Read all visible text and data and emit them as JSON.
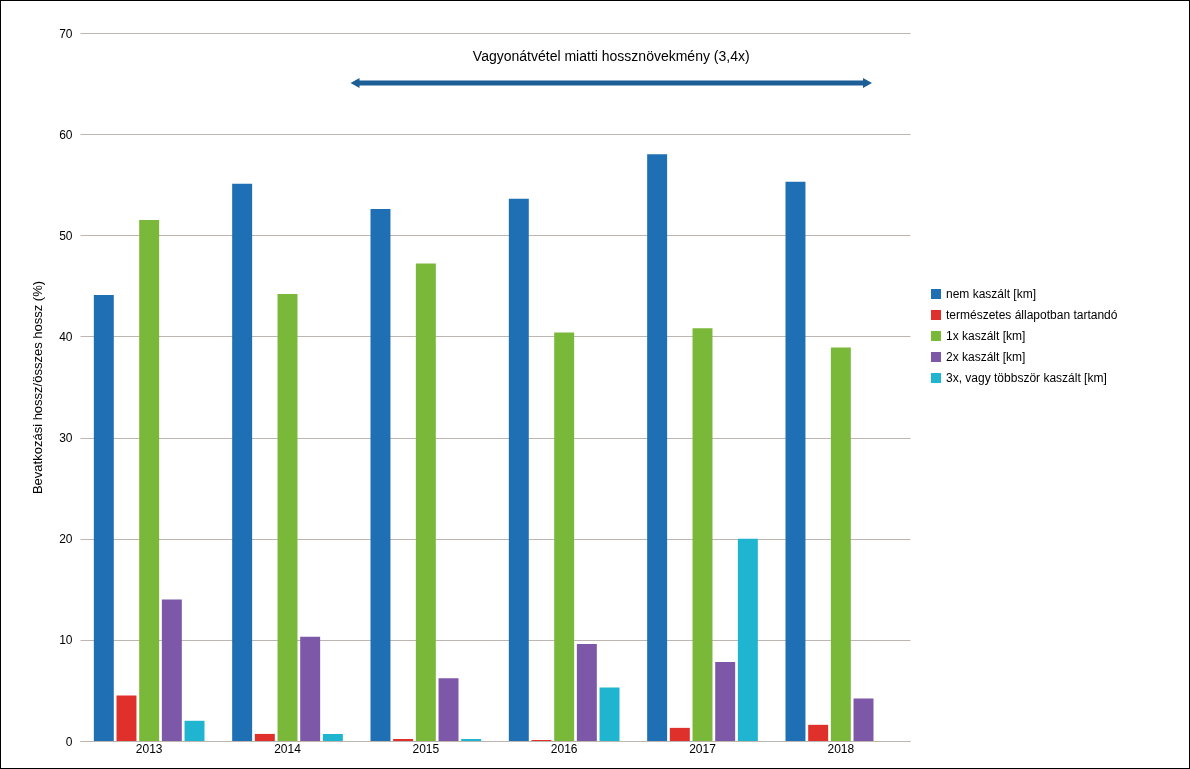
{
  "chart_data": {
    "type": "bar",
    "ylabel": "Bevatkozási hossz/összes hossz (%)",
    "categories": [
      "2013",
      "2014",
      "2015",
      "2016",
      "2017",
      "2018"
    ],
    "series": [
      {
        "name": "nem kaszált [km]",
        "color": "#1f6fb5",
        "values": [
          44.1,
          55.1,
          52.6,
          53.6,
          58,
          55.3
        ]
      },
      {
        "name": "természetes állapotban tartandó",
        "color": "#e0302b",
        "values": [
          4.5,
          0.7,
          0.2,
          0.1,
          1.3,
          1.6
        ]
      },
      {
        "name": "1x kaszált [km]",
        "color": "#7ab83a",
        "values": [
          51.5,
          44.2,
          47.2,
          40.4,
          40.8,
          38.9
        ]
      },
      {
        "name": "2x kaszált [km]",
        "color": "#7d57a8",
        "values": [
          14,
          10.3,
          6.2,
          9.6,
          7.8,
          4.2
        ]
      },
      {
        "name": "3x, vagy többször kaszált [km]",
        "color": "#1fb4d0",
        "values": [
          2,
          0.7,
          0.2,
          5.3,
          20,
          0
        ]
      }
    ],
    "ylim": [
      0,
      70
    ],
    "yticks": [
      0,
      10,
      20,
      30,
      40,
      50,
      60,
      70
    ],
    "grid": "y",
    "legend": "right",
    "annotations": [
      "Vagyonátvétel miatti hossznövekmény (3,4x)"
    ]
  }
}
